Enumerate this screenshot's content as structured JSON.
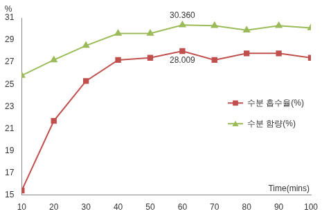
{
  "chart_data": {
    "type": "line",
    "y_label": "%",
    "x_label": "Time(mins)",
    "x": [
      10,
      20,
      30,
      40,
      50,
      60,
      70,
      80,
      90,
      100
    ],
    "series": [
      {
        "name": "수분 흡수율(%)",
        "color": "#c0504d",
        "marker": "square",
        "values": [
          15.4,
          21.7,
          25.3,
          27.2,
          27.4,
          28.009,
          27.2,
          27.8,
          27.8,
          27.4
        ]
      },
      {
        "name": "수분 함량(%)",
        "color": "#9bbb59",
        "marker": "triangle",
        "values": [
          25.8,
          27.2,
          28.5,
          29.6,
          29.6,
          30.36,
          30.3,
          29.9,
          30.3,
          30.1
        ]
      }
    ],
    "xlim": [
      10,
      100
    ],
    "xticks": [
      10,
      20,
      30,
      40,
      50,
      60,
      70,
      80,
      90,
      100
    ],
    "ylim": [
      15,
      31
    ],
    "yticks": [
      15,
      17,
      19,
      21,
      23,
      25,
      27,
      29,
      31
    ],
    "grid": false,
    "legend": "right",
    "annotations": [
      {
        "x": 60,
        "y": 30.36,
        "label": "30.360"
      },
      {
        "x": 60,
        "y": 28.009,
        "label": "28.009"
      }
    ]
  }
}
